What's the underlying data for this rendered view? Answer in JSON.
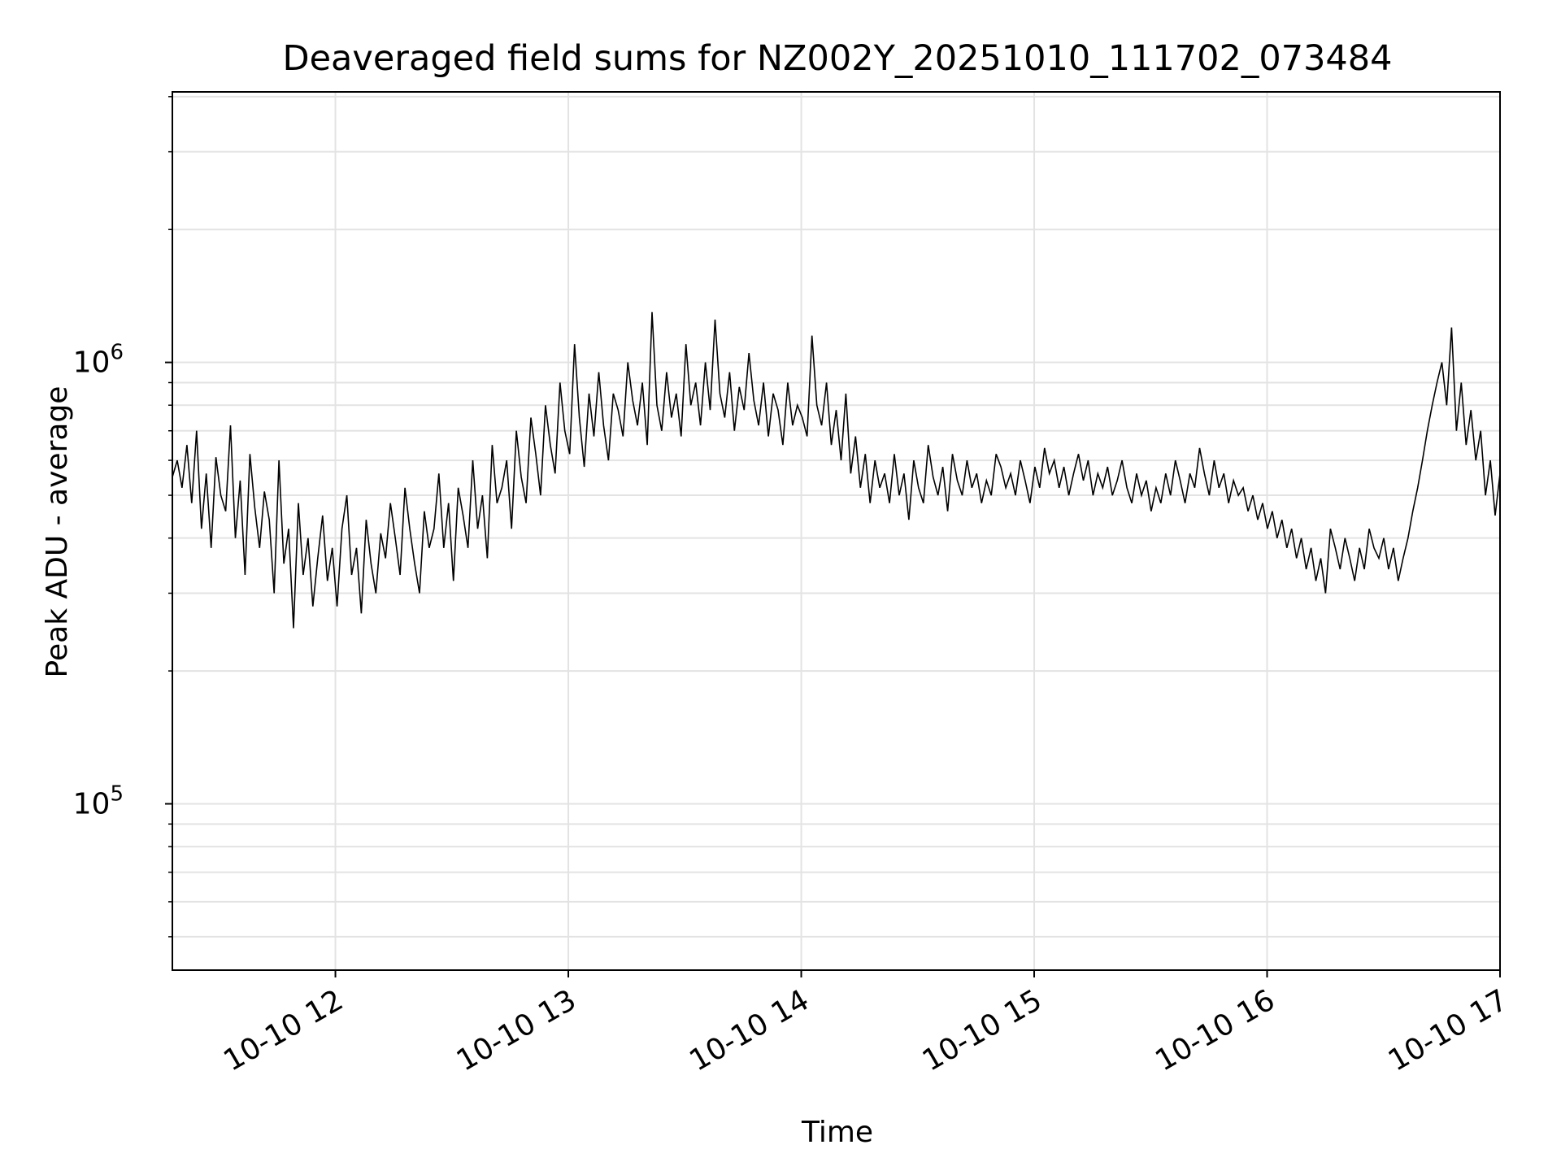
{
  "chart_data": {
    "type": "line",
    "title": "Deaveraged field sums for NZ002Y_20251010_111702_073484",
    "xlabel": "Time",
    "ylabel": "Peak ADU - average",
    "yscale": "log",
    "ylim": [
      42000,
      4100000
    ],
    "xlim_hours": [
      11.3,
      17.0
    ],
    "x_ticks": [
      {
        "value": 12,
        "label": "10-10 12"
      },
      {
        "value": 13,
        "label": "10-10 13"
      },
      {
        "value": 14,
        "label": "10-10 14"
      },
      {
        "value": 15,
        "label": "10-10 15"
      },
      {
        "value": 16,
        "label": "10-10 16"
      },
      {
        "value": 17,
        "label": "10-10 17"
      }
    ],
    "y_major_ticks": [
      {
        "value": 100000,
        "base": "10",
        "exp": "5"
      },
      {
        "value": 1000000,
        "base": "10",
        "exp": "6"
      }
    ],
    "grid": true,
    "line_color": "#000000",
    "series": [
      {
        "name": "field sums",
        "x_start": 11.3,
        "x_end": 17.0,
        "values": [
          550000,
          600000,
          520000,
          650000,
          480000,
          700000,
          420000,
          560000,
          380000,
          610000,
          500000,
          460000,
          720000,
          400000,
          540000,
          330000,
          620000,
          470000,
          380000,
          510000,
          440000,
          300000,
          600000,
          350000,
          420000,
          250000,
          480000,
          330000,
          400000,
          280000,
          360000,
          450000,
          320000,
          380000,
          280000,
          420000,
          500000,
          330000,
          380000,
          270000,
          440000,
          350000,
          300000,
          410000,
          360000,
          480000,
          400000,
          330000,
          520000,
          420000,
          350000,
          300000,
          460000,
          380000,
          420000,
          560000,
          380000,
          480000,
          320000,
          520000,
          450000,
          380000,
          600000,
          420000,
          500000,
          360000,
          650000,
          480000,
          520000,
          600000,
          420000,
          700000,
          550000,
          480000,
          750000,
          620000,
          500000,
          800000,
          650000,
          560000,
          900000,
          700000,
          620000,
          1100000,
          750000,
          580000,
          850000,
          680000,
          950000,
          720000,
          600000,
          850000,
          780000,
          680000,
          1000000,
          820000,
          720000,
          900000,
          650000,
          1300000,
          800000,
          700000,
          950000,
          750000,
          850000,
          680000,
          1100000,
          800000,
          900000,
          720000,
          1000000,
          780000,
          1250000,
          850000,
          750000,
          950000,
          700000,
          880000,
          780000,
          1050000,
          820000,
          720000,
          900000,
          680000,
          850000,
          780000,
          650000,
          900000,
          720000,
          800000,
          750000,
          680000,
          1150000,
          800000,
          720000,
          900000,
          650000,
          780000,
          600000,
          850000,
          560000,
          680000,
          520000,
          620000,
          480000,
          600000,
          520000,
          560000,
          480000,
          620000,
          500000,
          560000,
          440000,
          600000,
          520000,
          480000,
          650000,
          550000,
          500000,
          580000,
          460000,
          620000,
          540000,
          500000,
          600000,
          520000,
          560000,
          480000,
          540000,
          500000,
          620000,
          580000,
          520000,
          560000,
          500000,
          600000,
          540000,
          480000,
          580000,
          520000,
          640000,
          560000,
          600000,
          520000,
          580000,
          500000,
          560000,
          620000,
          540000,
          600000,
          500000,
          560000,
          520000,
          580000,
          500000,
          540000,
          600000,
          520000,
          480000,
          560000,
          500000,
          540000,
          460000,
          520000,
          480000,
          560000,
          500000,
          600000,
          540000,
          480000,
          560000,
          520000,
          640000,
          560000,
          500000,
          600000,
          520000,
          560000,
          480000,
          540000,
          500000,
          520000,
          460000,
          500000,
          440000,
          480000,
          420000,
          460000,
          400000,
          440000,
          380000,
          420000,
          360000,
          400000,
          340000,
          380000,
          320000,
          360000,
          300000,
          420000,
          380000,
          340000,
          400000,
          360000,
          320000,
          380000,
          340000,
          420000,
          380000,
          360000,
          400000,
          340000,
          380000,
          320000,
          360000,
          400000,
          460000,
          520000,
          600000,
          700000,
          800000,
          900000,
          1000000,
          800000,
          1200000,
          700000,
          900000,
          650000,
          780000,
          600000,
          700000,
          500000,
          600000,
          450000,
          560000
        ]
      }
    ]
  }
}
